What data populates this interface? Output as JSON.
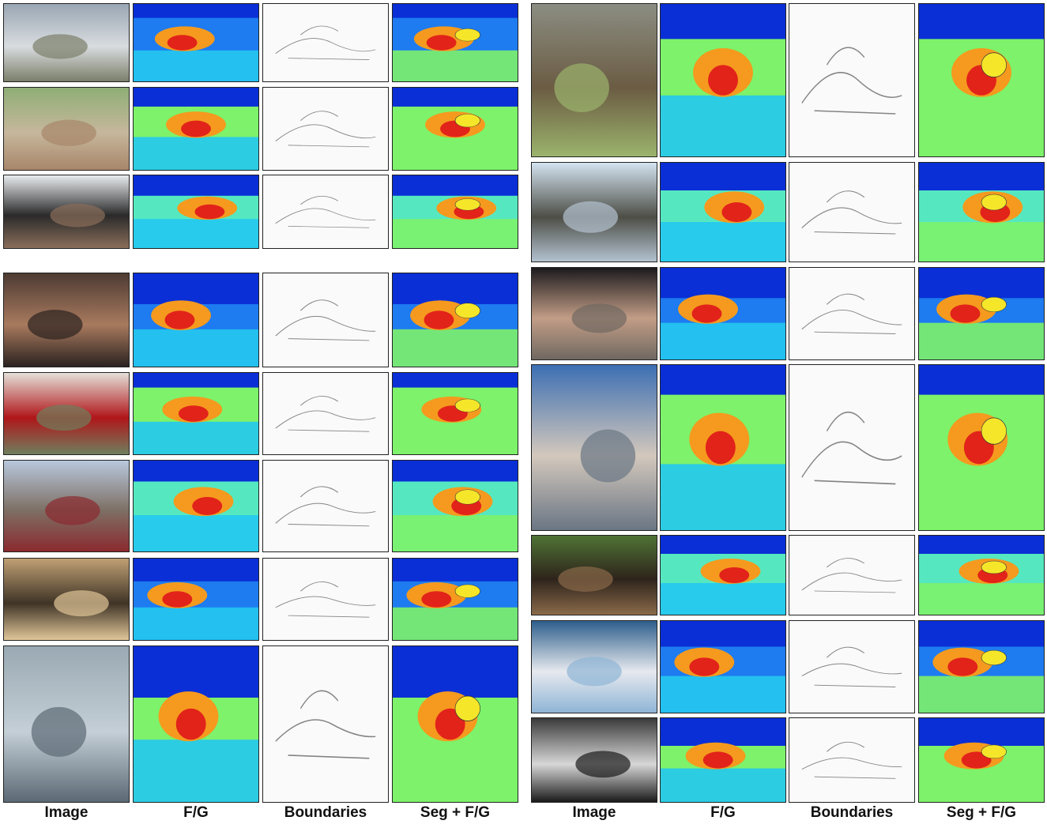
{
  "figure": {
    "left_group": {
      "column_labels": [
        "Image",
        "F/G",
        "Boundaries",
        "Seg + F/G"
      ]
    },
    "right_group": {
      "column_labels": [
        "Image",
        "F/G",
        "Boundaries",
        "Seg + F/G"
      ]
    }
  },
  "colors": {
    "jet_dark_blue": "#0a2fd6",
    "jet_blue": "#1e7bf0",
    "jet_cyan": "#23c8f0",
    "jet_teal": "#55e8c0",
    "jet_green": "#7df26a",
    "jet_yellow": "#f5e62a",
    "jet_orange": "#f59a1e",
    "jet_red": "#e2231a",
    "jet_dark_red": "#9a0f0f",
    "boundary_bg": "#fafafa",
    "boundary_line": "#666666"
  }
}
